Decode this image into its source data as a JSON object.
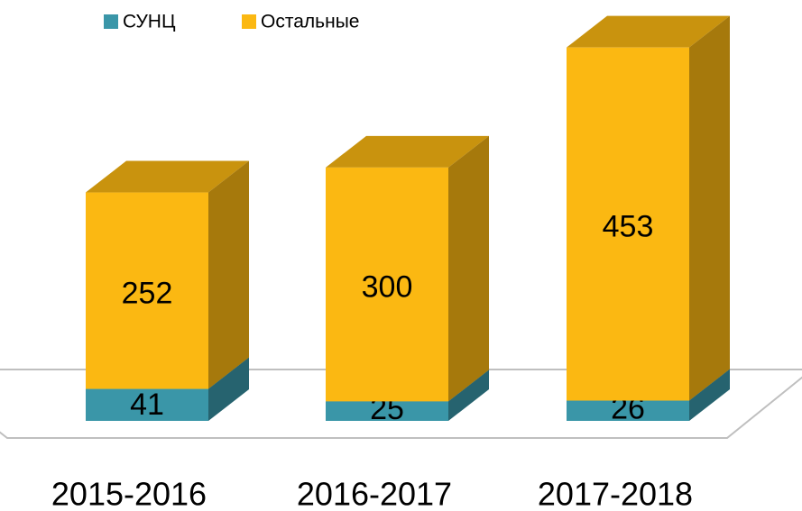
{
  "chart_data": {
    "type": "bar3d_stacked",
    "categories": [
      "2015-2016",
      "2016-2017",
      "2017-2018"
    ],
    "series": [
      {
        "name": "СУНЦ",
        "color": "#3a96a8",
        "values": [
          41,
          25,
          26
        ]
      },
      {
        "name": "Остальные",
        "color": "#fbb812",
        "values": [
          252,
          300,
          453
        ]
      }
    ],
    "legend": "top"
  }
}
